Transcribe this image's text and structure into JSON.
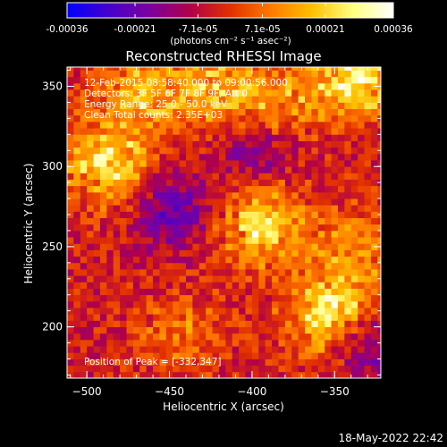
{
  "colorbar": {
    "tick_labels": [
      "-0.00036",
      "-0.00021",
      "-7.1e-05",
      "7.1e-05",
      "0.00021",
      "0.00036"
    ],
    "tick_values": [
      -0.00036,
      -0.00021,
      -7.1e-05,
      7.1e-05,
      0.00021,
      0.00036
    ],
    "range": [
      -0.00036,
      0.00036
    ],
    "units_label": "(photons cm⁻² s⁻¹ asec⁻²)",
    "colormap": [
      "#0000ff",
      "#4400cc",
      "#7a00a0",
      "#b0004a",
      "#e23000",
      "#ff7a00",
      "#ffc000",
      "#ffff80",
      "#ffffff"
    ]
  },
  "chart_data": {
    "type": "heatmap",
    "title": "Reconstructed RHESSI Image",
    "xlabel": "Heliocentric X (arcsec)",
    "ylabel": "Heliocentric Y (arcsec)",
    "xlim": [
      -512,
      -322
    ],
    "ylim": [
      168,
      362
    ],
    "x_ticks": [
      -500,
      -450,
      -400,
      -350
    ],
    "x_tick_labels": [
      "−500",
      "−450",
      "−400",
      "−350"
    ],
    "y_ticks": [
      200,
      250,
      300,
      350
    ],
    "y_tick_labels": [
      "200",
      "250",
      "300",
      "350"
    ],
    "peak": [
      -332,
      347
    ],
    "bright_regions": [
      {
        "x": -490,
        "y": 300,
        "intensity": 0.0003
      },
      {
        "x": -470,
        "y": 345,
        "intensity": 0.00022
      },
      {
        "x": -425,
        "y": 345,
        "intensity": 0.00025
      },
      {
        "x": -385,
        "y": 338,
        "intensity": 0.0002
      },
      {
        "x": -338,
        "y": 355,
        "intensity": 0.00036
      },
      {
        "x": -395,
        "y": 260,
        "intensity": 0.0003
      },
      {
        "x": -355,
        "y": 205,
        "intensity": 0.00033
      },
      {
        "x": -340,
        "y": 248,
        "intensity": 0.00018
      },
      {
        "x": -445,
        "y": 195,
        "intensity": 0.00015
      }
    ],
    "dim_regions": [
      {
        "x": -450,
        "y": 270,
        "intensity": -0.00021
      },
      {
        "x": -400,
        "y": 310,
        "intensity": -0.00018
      },
      {
        "x": -330,
        "y": 185,
        "intensity": -0.0002
      }
    ]
  },
  "info_lines": [
    "12-Feb-2015 08:58:40.000 to 09:00:56.000",
    "Detectors: 3F 5F 6F 7F 8F 9F, Att 0",
    "Energy Range: 25.0 - 50.0 keV",
    "Clean     Total counts: 2.35E+03"
  ],
  "peak_text": "Position of Peak = [-332,347]",
  "timestamp": "18-May-2022 22:42"
}
